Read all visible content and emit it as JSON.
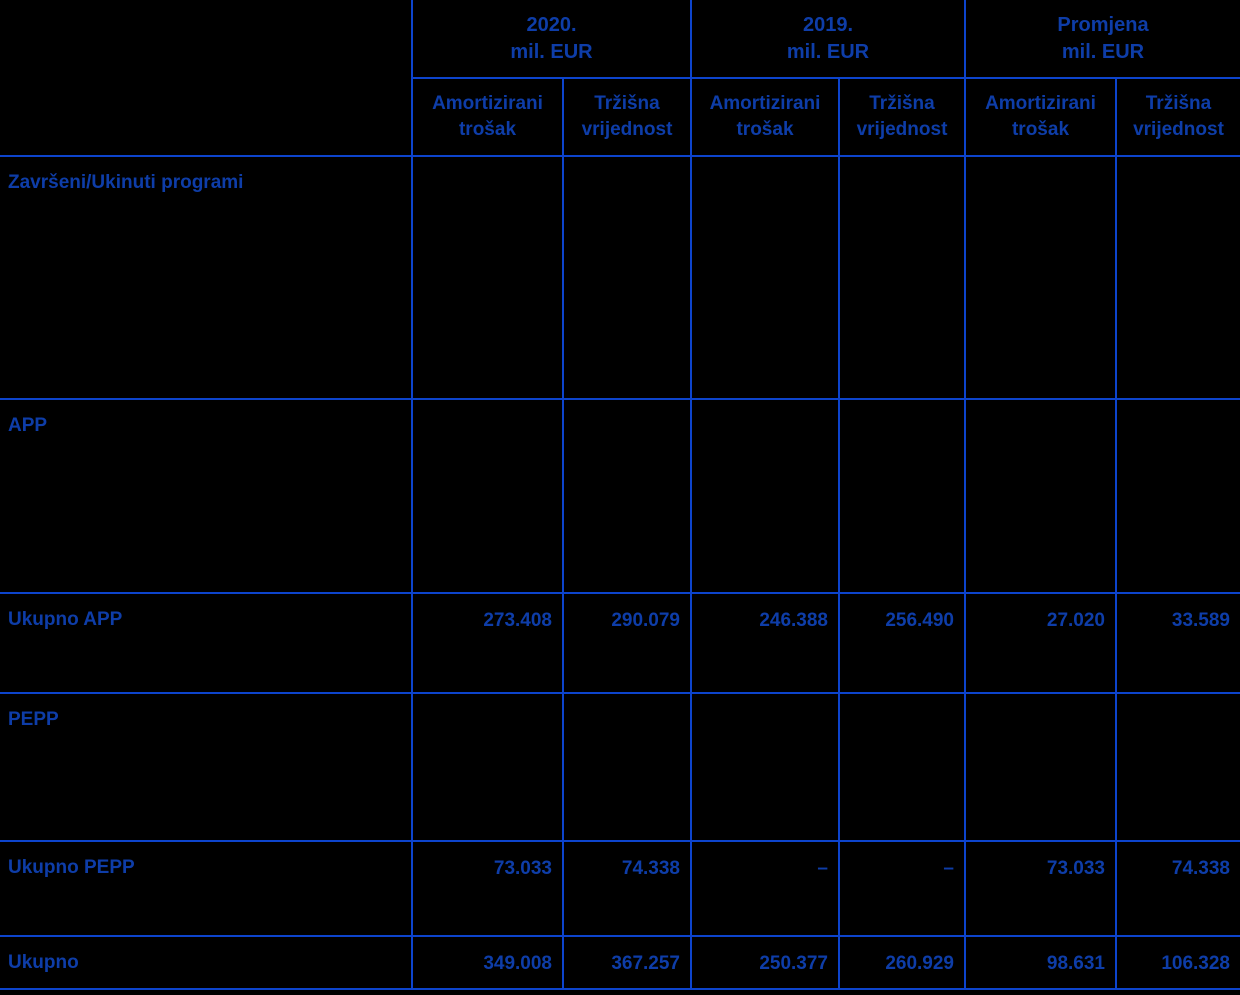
{
  "colors": {
    "background": "#000000",
    "text_blue": "#0e3da8",
    "border_blue": "#0d44cd"
  },
  "table": {
    "column_groups": [
      {
        "period": "2020.",
        "unit": "mil. EUR"
      },
      {
        "period": "2019.",
        "unit": "mil. EUR"
      },
      {
        "period": "Promjena",
        "unit": "mil. EUR"
      }
    ],
    "sub_headers": [
      "Amortizirani trošak",
      "Tržišna vrijednost"
    ],
    "rows": [
      {
        "label": "Završeni/Ukinuti programi",
        "values": [
          "",
          "",
          "",
          "",
          "",
          ""
        ]
      },
      {
        "label": "APP",
        "values": [
          "",
          "",
          "",
          "",
          "",
          ""
        ]
      },
      {
        "label": "Ukupno APP",
        "values": [
          "273.408",
          "290.079",
          "246.388",
          "256.490",
          "27.020",
          "33.589"
        ]
      },
      {
        "label": "PEPP",
        "values": [
          "",
          "",
          "",
          "",
          "",
          ""
        ]
      },
      {
        "label": "Ukupno PEPP",
        "values": [
          "73.033",
          "74.338",
          "–",
          "–",
          "73.033",
          "74.338"
        ]
      },
      {
        "label": "Ukupno",
        "values": [
          "349.008",
          "367.257",
          "250.377",
          "260.929",
          "98.631",
          "106.328"
        ]
      }
    ]
  }
}
